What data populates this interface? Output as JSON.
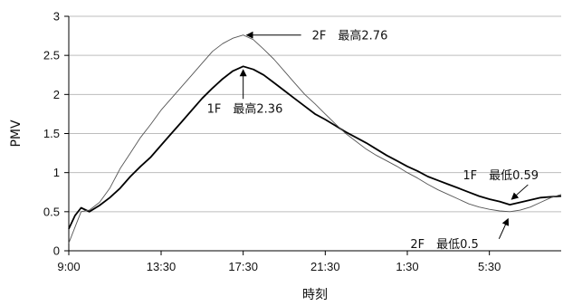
{
  "chart_data": {
    "type": "line",
    "title": "",
    "xlabel": "時刻",
    "ylabel": "PMV",
    "ylim": [
      0,
      3
    ],
    "yticks": [
      "0",
      "0.5",
      "1",
      "1.5",
      "2",
      "2.5",
      "3"
    ],
    "xlim": [
      "9:00",
      "9:00 (next day)"
    ],
    "xticks": [
      "9:00",
      "13:30",
      "17:30",
      "21:30",
      "1:30",
      "5:30"
    ],
    "grid": "horizontal",
    "colors": {
      "series_1f": "#000000",
      "series_2f": "#555555",
      "grid": "#bdbdbd"
    },
    "series": [
      {
        "name": "1F",
        "time_hours": [
          9.0,
          9.3,
          9.6,
          10.0,
          10.5,
          11.0,
          11.5,
          12.0,
          12.5,
          13.0,
          13.5,
          14.0,
          14.5,
          15.0,
          15.5,
          16.0,
          16.5,
          17.0,
          17.5,
          18.0,
          18.5,
          19.0,
          19.5,
          20.0,
          20.5,
          21.0,
          21.5,
          22.0,
          22.5,
          23.0,
          23.5,
          24.0,
          24.5,
          25.0,
          25.5,
          26.0,
          26.5,
          27.0,
          27.5,
          28.0,
          28.5,
          29.0,
          29.5,
          30.0,
          30.5,
          31.0,
          31.5,
          32.0,
          32.5,
          33.0
        ],
        "values": [
          0.28,
          0.45,
          0.55,
          0.5,
          0.58,
          0.68,
          0.8,
          0.95,
          1.08,
          1.2,
          1.35,
          1.5,
          1.65,
          1.8,
          1.95,
          2.08,
          2.2,
          2.3,
          2.36,
          2.32,
          2.25,
          2.15,
          2.05,
          1.95,
          1.85,
          1.75,
          1.68,
          1.6,
          1.52,
          1.45,
          1.38,
          1.3,
          1.22,
          1.15,
          1.08,
          1.02,
          0.95,
          0.9,
          0.85,
          0.8,
          0.75,
          0.7,
          0.66,
          0.63,
          0.59,
          0.62,
          0.65,
          0.68,
          0.69,
          0.7
        ]
      },
      {
        "name": "2F",
        "time_hours": [
          9.0,
          9.3,
          9.6,
          10.0,
          10.5,
          11.0,
          11.5,
          12.0,
          12.5,
          13.0,
          13.5,
          14.0,
          14.5,
          15.0,
          15.5,
          16.0,
          16.5,
          17.0,
          17.5,
          18.0,
          18.5,
          19.0,
          19.5,
          20.0,
          20.5,
          21.0,
          21.5,
          22.0,
          22.5,
          23.0,
          23.5,
          24.0,
          24.5,
          25.0,
          25.5,
          26.0,
          26.5,
          27.0,
          27.5,
          28.0,
          28.5,
          29.0,
          29.5,
          30.0,
          30.5,
          31.0,
          31.5,
          32.0,
          32.5,
          33.0
        ],
        "values": [
          0.1,
          0.3,
          0.5,
          0.52,
          0.62,
          0.8,
          1.05,
          1.25,
          1.45,
          1.62,
          1.8,
          1.95,
          2.1,
          2.25,
          2.4,
          2.55,
          2.65,
          2.72,
          2.76,
          2.7,
          2.58,
          2.45,
          2.3,
          2.15,
          2.0,
          1.88,
          1.75,
          1.62,
          1.5,
          1.4,
          1.3,
          1.22,
          1.15,
          1.08,
          1.0,
          0.93,
          0.85,
          0.78,
          0.72,
          0.66,
          0.6,
          0.56,
          0.53,
          0.51,
          0.5,
          0.52,
          0.56,
          0.62,
          0.68,
          0.72
        ]
      }
    ],
    "annotations": [
      {
        "text": "2F　最高2.76",
        "series": "2F",
        "x_time_hours": 17.5,
        "y": 2.76
      },
      {
        "text": "1F　最高2.36",
        "series": "1F",
        "x_time_hours": 17.5,
        "y": 2.36
      },
      {
        "text": "1F　最低0.59",
        "series": "1F",
        "x_time_hours": 30.5,
        "y": 0.59
      },
      {
        "text": "2F　最低0.5",
        "series": "2F",
        "x_time_hours": 30.5,
        "y": 0.5
      }
    ]
  }
}
